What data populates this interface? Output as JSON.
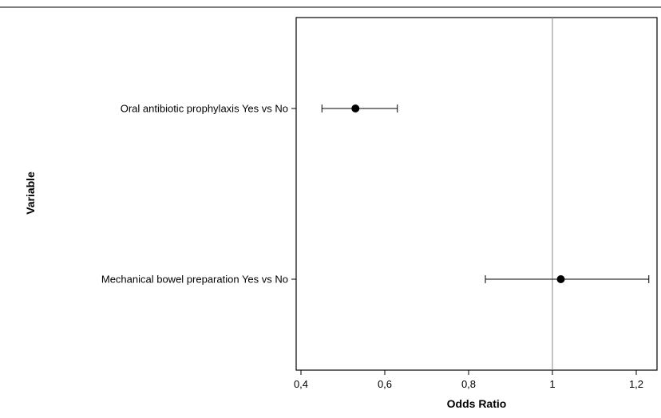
{
  "chart_data": {
    "type": "forest",
    "xlabel": "Odds Ratio",
    "ylabel": "Variable",
    "xlim": [
      0.4,
      1.24
    ],
    "x_ticks": [
      0.4,
      0.6,
      0.8,
      1.0,
      1.2
    ],
    "x_tick_labels": [
      "0,4",
      "0,6",
      "0,8",
      "1",
      "1,2"
    ],
    "reference_line": 1.0,
    "grid": false,
    "rows": [
      {
        "label": "Oral antibiotic prophylaxis Yes vs No",
        "estimate": 0.53,
        "lower": 0.45,
        "upper": 0.63
      },
      {
        "label": "Mechanical bowel preparation Yes vs No",
        "estimate": 1.02,
        "lower": 0.84,
        "upper": 1.23
      }
    ]
  }
}
